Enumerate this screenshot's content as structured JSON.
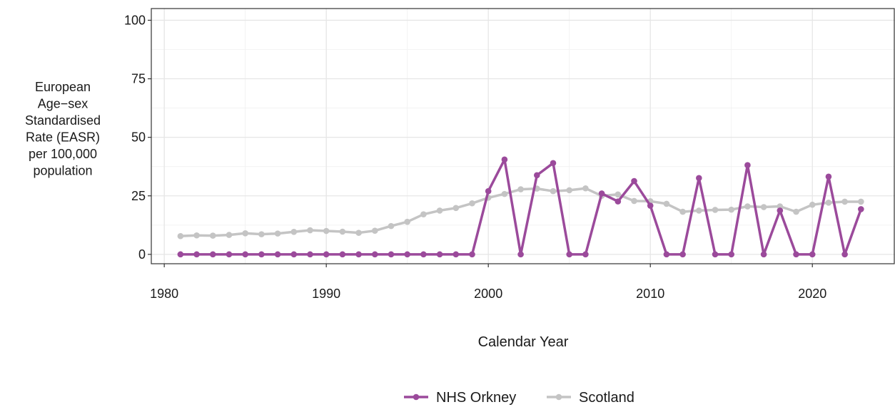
{
  "chart_data": {
    "type": "line",
    "title": "",
    "xlabel": "Calendar Year",
    "ylabel_lines": [
      "European",
      "Age−sex",
      "Standardised",
      "Rate (EASR)",
      "per 100,000",
      "population"
    ],
    "xlim": [
      1979.2,
      2025.1
    ],
    "ylim": [
      -4,
      105
    ],
    "x_ticks": [
      1980,
      1990,
      2000,
      2010,
      2020
    ],
    "y_ticks": [
      0,
      25,
      50,
      75,
      100
    ],
    "grid": true,
    "legend_position": "bottom",
    "x": [
      1981,
      1982,
      1983,
      1984,
      1985,
      1986,
      1987,
      1988,
      1989,
      1990,
      1991,
      1992,
      1993,
      1994,
      1995,
      1996,
      1997,
      1998,
      1999,
      2000,
      2001,
      2002,
      2003,
      2004,
      2005,
      2006,
      2007,
      2008,
      2009,
      2010,
      2011,
      2012,
      2013,
      2014,
      2015,
      2016,
      2017,
      2018,
      2019,
      2020,
      2021,
      2022,
      2023
    ],
    "series": [
      {
        "name": "NHS Orkney",
        "color": "#9b4a9b",
        "values": [
          0,
          0,
          0,
          0,
          0,
          0,
          0,
          0,
          0,
          0,
          0,
          0,
          0,
          0,
          0,
          0,
          0,
          0,
          0,
          27.0,
          40.5,
          0,
          33.8,
          39.0,
          0,
          0,
          26.0,
          22.6,
          31.3,
          20.8,
          0,
          0,
          32.6,
          0,
          0,
          38.1,
          0,
          18.7,
          0,
          0,
          33.2,
          0,
          19.3
        ]
      },
      {
        "name": "Scotland",
        "color": "#c4c4c4",
        "values": [
          7.8,
          8.1,
          8.0,
          8.3,
          9.0,
          8.6,
          8.9,
          9.6,
          10.3,
          10.0,
          9.7,
          9.2,
          10.1,
          12.1,
          13.9,
          17.1,
          18.7,
          19.8,
          21.8,
          24.2,
          25.8,
          27.8,
          28.1,
          27.0,
          27.4,
          28.2,
          25.0,
          25.6,
          22.8,
          22.7,
          21.6,
          18.2,
          18.7,
          19.0,
          19.1,
          20.5,
          20.2,
          20.5,
          18.2,
          21.2,
          22.1,
          22.5,
          22.5
        ]
      }
    ]
  }
}
